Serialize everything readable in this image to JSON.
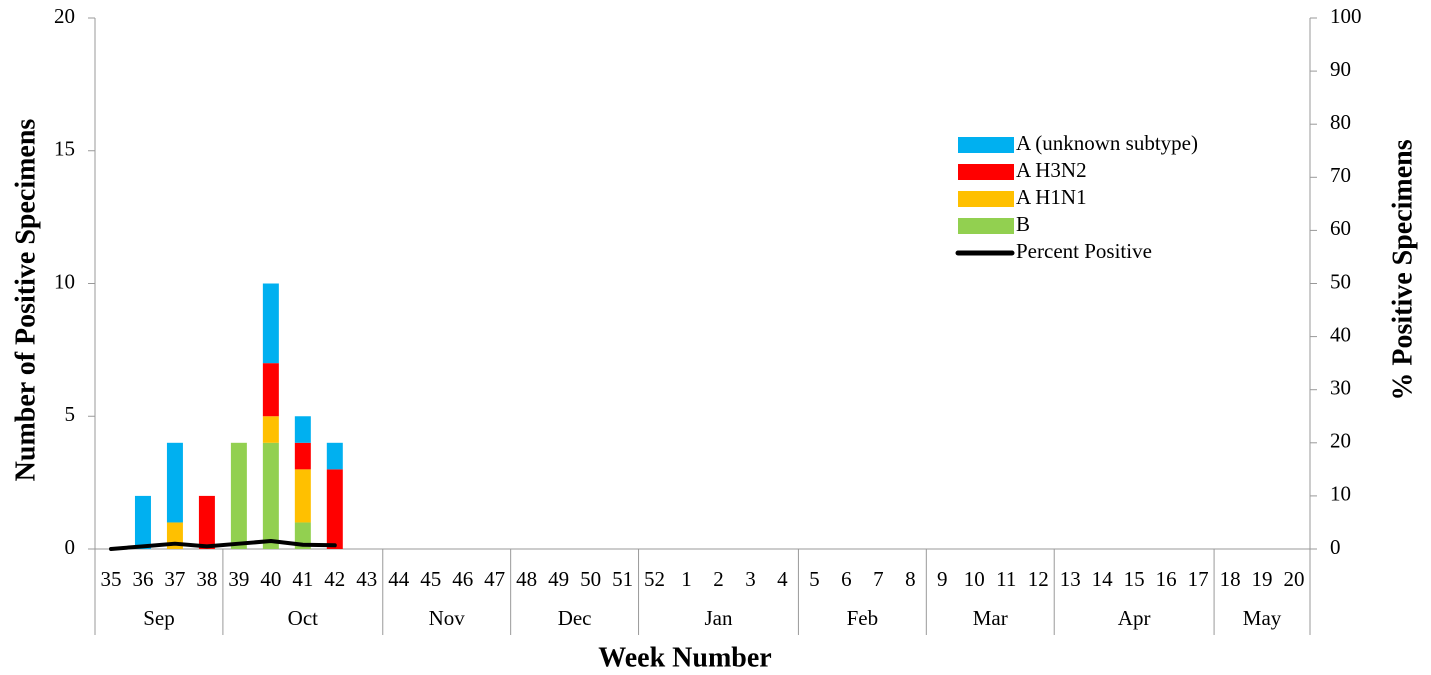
{
  "chart_data": {
    "type": "bar",
    "x_label": "Week Number",
    "y_label": "Number of Positive Specimens",
    "y2_label": "% Positive Specimens",
    "categories": [
      "35",
      "36",
      "37",
      "38",
      "39",
      "40",
      "41",
      "42",
      "43",
      "44",
      "45",
      "46",
      "47",
      "48",
      "49",
      "50",
      "51",
      "52",
      "1",
      "2",
      "3",
      "4",
      "5",
      "6",
      "7",
      "8",
      "9",
      "10",
      "11",
      "12",
      "13",
      "14",
      "15",
      "16",
      "17",
      "18",
      "19",
      "20"
    ],
    "groups": [
      {
        "label": "Sep",
        "count": 4
      },
      {
        "label": "Oct",
        "count": 5
      },
      {
        "label": "Nov",
        "count": 4
      },
      {
        "label": "Dec",
        "count": 4
      },
      {
        "label": "Jan",
        "count": 5
      },
      {
        "label": "Feb",
        "count": 4
      },
      {
        "label": "Mar",
        "count": 4
      },
      {
        "label": "Apr",
        "count": 5
      },
      {
        "label": "May",
        "count": 3
      }
    ],
    "stacked": true,
    "series": [
      {
        "name": "A (unknown subtype)",
        "color": "#00b0f0",
        "values": [
          0,
          2,
          3,
          0,
          0,
          3,
          1,
          1,
          null,
          null,
          null,
          null,
          null,
          null,
          null,
          null,
          null,
          null,
          null,
          null,
          null,
          null,
          null,
          null,
          null,
          null,
          null,
          null,
          null,
          null,
          null,
          null,
          null,
          null,
          null,
          null,
          null,
          null
        ]
      },
      {
        "name": "A H3N2",
        "color": "#ff0000",
        "values": [
          0,
          0,
          0,
          2,
          0,
          2,
          1,
          3,
          null,
          null,
          null,
          null,
          null,
          null,
          null,
          null,
          null,
          null,
          null,
          null,
          null,
          null,
          null,
          null,
          null,
          null,
          null,
          null,
          null,
          null,
          null,
          null,
          null,
          null,
          null,
          null,
          null,
          null
        ]
      },
      {
        "name": "A H1N1",
        "color": "#ffc000",
        "values": [
          0,
          0,
          1,
          0,
          0,
          1,
          2,
          0,
          null,
          null,
          null,
          null,
          null,
          null,
          null,
          null,
          null,
          null,
          null,
          null,
          null,
          null,
          null,
          null,
          null,
          null,
          null,
          null,
          null,
          null,
          null,
          null,
          null,
          null,
          null,
          null,
          null,
          null
        ]
      },
      {
        "name": "B",
        "color": "#92d050",
        "values": [
          0,
          0,
          0,
          0,
          4,
          4,
          1,
          0,
          null,
          null,
          null,
          null,
          null,
          null,
          null,
          null,
          null,
          null,
          null,
          null,
          null,
          null,
          null,
          null,
          null,
          null,
          null,
          null,
          null,
          null,
          null,
          null,
          null,
          null,
          null,
          null,
          null,
          null
        ]
      },
      {
        "name": "Percent Positive",
        "type": "line",
        "axis": "y2",
        "color": "#000000",
        "values": [
          0,
          0.5,
          1,
          0.5,
          1,
          1.5,
          0.8,
          0.7,
          null,
          null,
          null,
          null,
          null,
          null,
          null,
          null,
          null,
          null,
          null,
          null,
          null,
          null,
          null,
          null,
          null,
          null,
          null,
          null,
          null,
          null,
          null,
          null,
          null,
          null,
          null,
          null,
          null,
          null
        ]
      }
    ],
    "ylim": [
      0,
      20
    ],
    "yticks": [
      0,
      5,
      10,
      15,
      20
    ],
    "y2lim": [
      0,
      100
    ],
    "y2ticks": [
      0,
      10,
      20,
      30,
      40,
      50,
      60,
      70,
      80,
      90,
      100
    ],
    "legend": "upper right"
  }
}
